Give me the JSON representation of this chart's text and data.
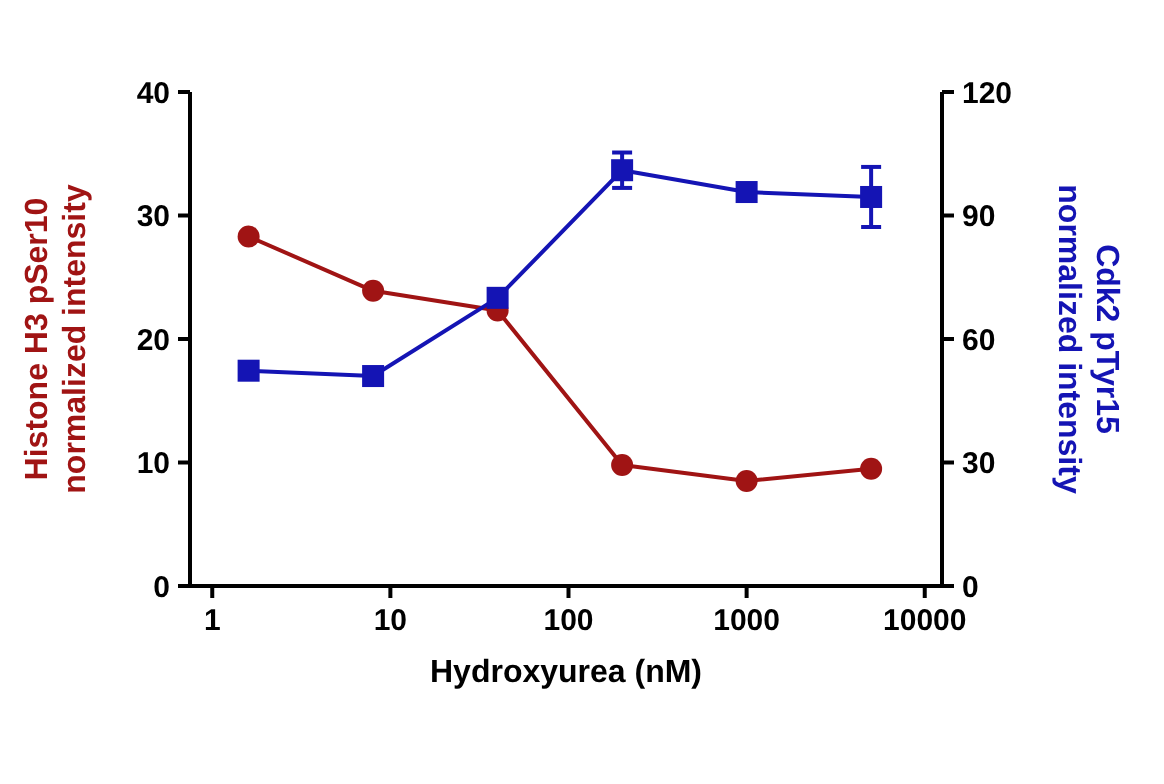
{
  "chart_data": {
    "type": "line",
    "xlabel": "Hydroxyurea (nM)",
    "ylabel": "Histone H3 pSer10\nnormalized intensity",
    "y2label": "Cdk2 pTyr15\nnormalized intensity",
    "x": [
      1.6,
      8,
      40,
      200,
      1000,
      5000
    ],
    "log": "x",
    "xlim": [
      0.75,
      12500
    ],
    "xticks": [
      1,
      10,
      100,
      1000,
      10000
    ],
    "ylim": [
      0,
      40
    ],
    "yticks": [
      0,
      10,
      20,
      30,
      40
    ],
    "y2lim": [
      0,
      120
    ],
    "y2ticks": [
      0,
      30,
      60,
      90,
      120
    ],
    "grid": false,
    "line_style": "solid",
    "series": [
      {
        "color": "#a01414",
        "marker": "circle",
        "values": [
          28.3,
          23.9,
          22.3,
          9.8,
          8.5,
          9.5
        ]
      },
      {
        "color": "#1414b4",
        "marker": "square",
        "axis": "y2",
        "values": [
          52.3,
          51,
          70,
          101,
          95.7,
          94.5
        ],
        "errors": [
          1.5,
          2,
          1.5,
          4.3,
          1,
          7.3
        ]
      }
    ]
  }
}
